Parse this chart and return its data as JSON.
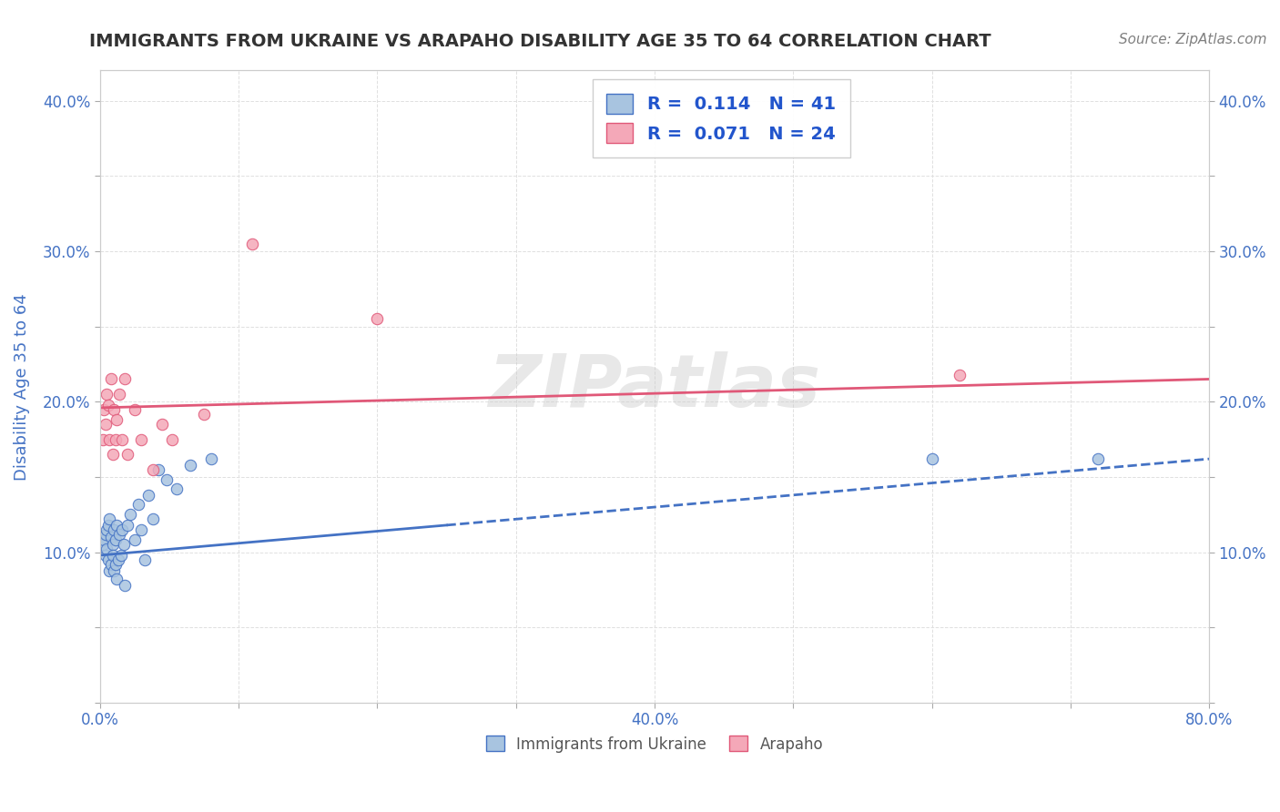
{
  "title": "IMMIGRANTS FROM UKRAINE VS ARAPAHO DISABILITY AGE 35 TO 64 CORRELATION CHART",
  "source": "Source: ZipAtlas.com",
  "ylabel": "Disability Age 35 to 64",
  "xlim": [
    0.0,
    0.8
  ],
  "ylim": [
    0.0,
    0.42
  ],
  "x_tick_positions": [
    0.0,
    0.1,
    0.2,
    0.3,
    0.4,
    0.5,
    0.6,
    0.7,
    0.8
  ],
  "x_tick_labels": [
    "0.0%",
    "",
    "",
    "",
    "40.0%",
    "",
    "",
    "",
    "80.0%"
  ],
  "y_tick_positions": [
    0.0,
    0.05,
    0.1,
    0.15,
    0.2,
    0.25,
    0.3,
    0.35,
    0.4
  ],
  "y_tick_labels": [
    "",
    "",
    "10.0%",
    "",
    "20.0%",
    "",
    "30.0%",
    "",
    "40.0%"
  ],
  "ukraine_x": [
    0.002,
    0.003,
    0.004,
    0.004,
    0.005,
    0.005,
    0.006,
    0.006,
    0.007,
    0.007,
    0.008,
    0.008,
    0.009,
    0.009,
    0.01,
    0.01,
    0.011,
    0.011,
    0.012,
    0.012,
    0.013,
    0.014,
    0.015,
    0.016,
    0.017,
    0.018,
    0.02,
    0.022,
    0.025,
    0.028,
    0.03,
    0.032,
    0.035,
    0.038,
    0.042,
    0.048,
    0.055,
    0.065,
    0.08,
    0.6,
    0.72
  ],
  "ukraine_y": [
    0.105,
    0.108,
    0.112,
    0.098,
    0.115,
    0.102,
    0.118,
    0.095,
    0.122,
    0.088,
    0.11,
    0.092,
    0.105,
    0.098,
    0.115,
    0.088,
    0.108,
    0.092,
    0.118,
    0.082,
    0.095,
    0.112,
    0.098,
    0.115,
    0.105,
    0.078,
    0.118,
    0.125,
    0.108,
    0.132,
    0.115,
    0.095,
    0.138,
    0.122,
    0.155,
    0.148,
    0.142,
    0.158,
    0.162,
    0.162,
    0.162
  ],
  "arapaho_x": [
    0.002,
    0.003,
    0.004,
    0.005,
    0.006,
    0.007,
    0.008,
    0.009,
    0.01,
    0.011,
    0.012,
    0.014,
    0.016,
    0.018,
    0.02,
    0.025,
    0.03,
    0.038,
    0.045,
    0.052,
    0.075,
    0.11,
    0.2,
    0.62
  ],
  "arapaho_y": [
    0.175,
    0.195,
    0.185,
    0.205,
    0.198,
    0.175,
    0.215,
    0.165,
    0.195,
    0.175,
    0.188,
    0.205,
    0.175,
    0.215,
    0.165,
    0.195,
    0.175,
    0.155,
    0.185,
    0.175,
    0.192,
    0.305,
    0.255,
    0.218
  ],
  "ukraine_color": "#a8c4e0",
  "arapaho_color": "#f4a8b8",
  "ukraine_line_color": "#4472c4",
  "arapaho_line_color": "#e05878",
  "ukraine_R": 0.114,
  "ukraine_N": 41,
  "arapaho_R": 0.071,
  "arapaho_N": 24,
  "legend_R_color": "#2255cc",
  "background_color": "#ffffff",
  "watermark": "ZIPatlas",
  "grid_color": "#e0e0e0",
  "title_color": "#333333",
  "axis_label_color": "#4472c4",
  "tick_label_color": "#4472c4",
  "trend_ukraine_x0": 0.0,
  "trend_ukraine_y0": 0.098,
  "trend_ukraine_x1": 0.8,
  "trend_ukraine_y1": 0.162,
  "trend_arapaho_x0": 0.0,
  "trend_arapaho_y0": 0.196,
  "trend_arapaho_x1": 0.8,
  "trend_arapaho_y1": 0.215
}
